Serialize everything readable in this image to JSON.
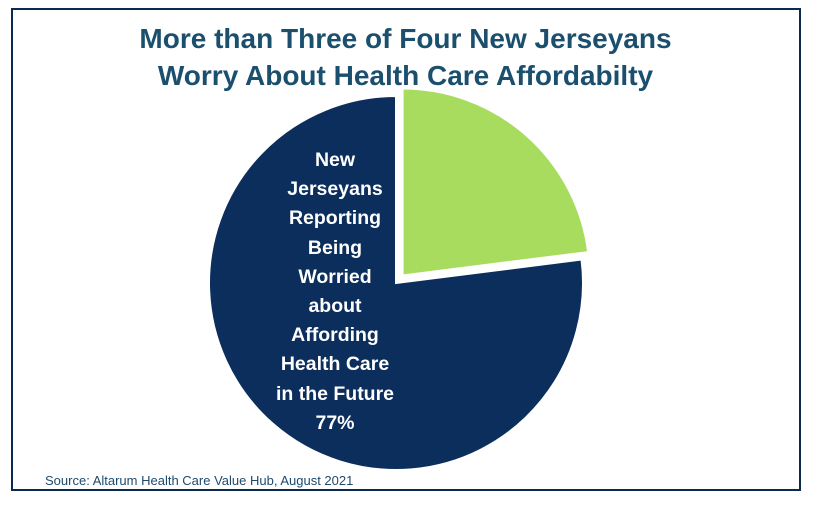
{
  "title": {
    "line1": "More than Three of Four New Jerseyans",
    "line2": "Worry About Health Care Affordabilty"
  },
  "source": "Source:  Altarum Health Care Value Hub, August 2021",
  "colors": {
    "worried": "#0b2e5c",
    "other": "#a8dc5f",
    "title": "#1a4f6e",
    "border": "#0b2a52"
  },
  "chart_data": {
    "type": "pie",
    "title": "More than Three of Four New Jerseyans Worry About Health Care Affordabilty",
    "slices": [
      {
        "label_lines": [
          "New",
          "Jerseyans",
          "Reporting",
          "Being",
          "Worried",
          "about",
          "Affording",
          "Health Care",
          "in the Future",
          "77%"
        ],
        "value": 77,
        "color": "#0b2e5c"
      },
      {
        "label_lines": [],
        "value": 23,
        "color": "#a8dc5f",
        "exploded": true
      }
    ]
  }
}
